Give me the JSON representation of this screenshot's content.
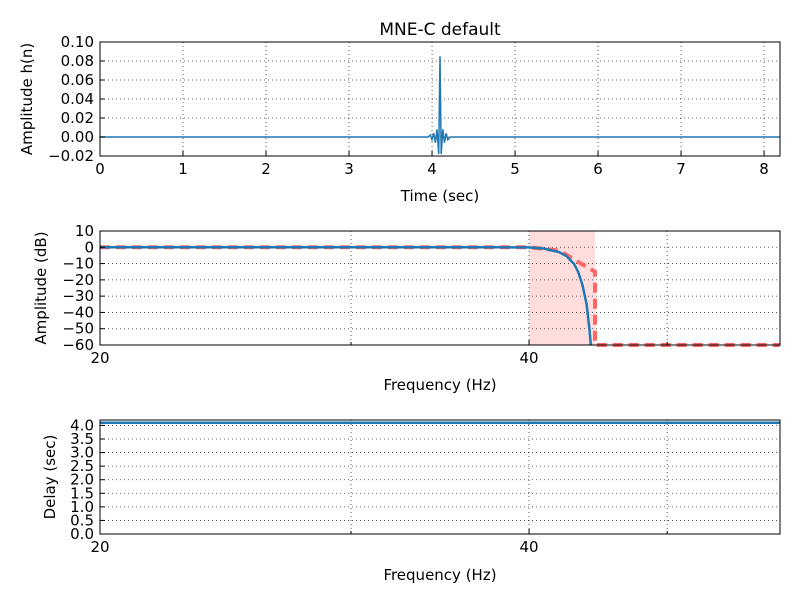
{
  "colors": {
    "filter": "#1f77b4",
    "ideal": "#ff6666",
    "transition_band": "#ffdddd"
  },
  "chart_data": [
    {
      "type": "line",
      "title": "MNE-C default",
      "xlabel": "Time (sec)",
      "ylabel": "Amplitude h(n)",
      "xlim": [
        0,
        8.192
      ],
      "ylim": [
        -0.02,
        0.1
      ],
      "xticks": [
        "0",
        "1",
        "2",
        "3",
        "4",
        "5",
        "6",
        "7",
        "8"
      ],
      "yticks": [
        "−0.02",
        "0.00",
        "0.02",
        "0.04",
        "0.06",
        "0.08",
        "0.10"
      ],
      "grid": true,
      "series": [
        {
          "description": "impulse response, flat near 0 with oscillating spike centered at ~4.096 s",
          "x": [
            0,
            3.95,
            3.98,
            4.0,
            4.02,
            4.04,
            4.06,
            4.08,
            4.096,
            4.11,
            4.13,
            4.15,
            4.17,
            4.19,
            4.22,
            8.192
          ],
          "y": [
            0,
            0,
            0.002,
            -0.003,
            0.004,
            -0.006,
            0.008,
            -0.018,
            0.085,
            -0.018,
            0.008,
            -0.006,
            0.004,
            -0.003,
            0,
            0
          ]
        }
      ]
    },
    {
      "type": "line",
      "title": "",
      "xlabel": "Frequency (Hz)",
      "ylabel": "Amplitude (dB)",
      "xscale": "log",
      "xlim": [
        20,
        60
      ],
      "ylim": [
        -60,
        10
      ],
      "xticks": [
        "20",
        "40"
      ],
      "yticks": [
        "10",
        "0",
        "−10",
        "−20",
        "−30",
        "−40",
        "−50",
        "−60"
      ],
      "grid": true,
      "transition_band": [
        40,
        44.5
      ],
      "series": [
        {
          "role": "actual",
          "x": [
            20,
            38,
            40,
            41,
            42,
            42.5,
            43,
            43.3,
            43.6,
            43.9,
            44.1,
            44.2
          ],
          "y": [
            0,
            0,
            -0.1,
            -0.8,
            -3,
            -5.5,
            -10,
            -15,
            -23,
            -35,
            -50,
            -60
          ]
        },
        {
          "role": "ideal",
          "x": [
            20,
            40,
            42,
            43.5,
            44.5,
            44.5,
            60
          ],
          "y": [
            0,
            0,
            -2,
            -10,
            -15,
            -60,
            -60
          ]
        }
      ]
    },
    {
      "type": "line",
      "title": "",
      "xlabel": "Frequency (Hz)",
      "ylabel": "Delay (sec)",
      "xscale": "log",
      "xlim": [
        20,
        60
      ],
      "ylim": [
        0,
        4.2
      ],
      "xticks": [
        "20",
        "40"
      ],
      "yticks": [
        "4.0",
        "3.5",
        "3.0",
        "2.5",
        "2.0",
        "1.5",
        "1.0",
        "0.5",
        "0.0"
      ],
      "grid": true,
      "series": [
        {
          "x": [
            20,
            60
          ],
          "y": [
            4.096,
            4.096
          ]
        }
      ]
    }
  ]
}
